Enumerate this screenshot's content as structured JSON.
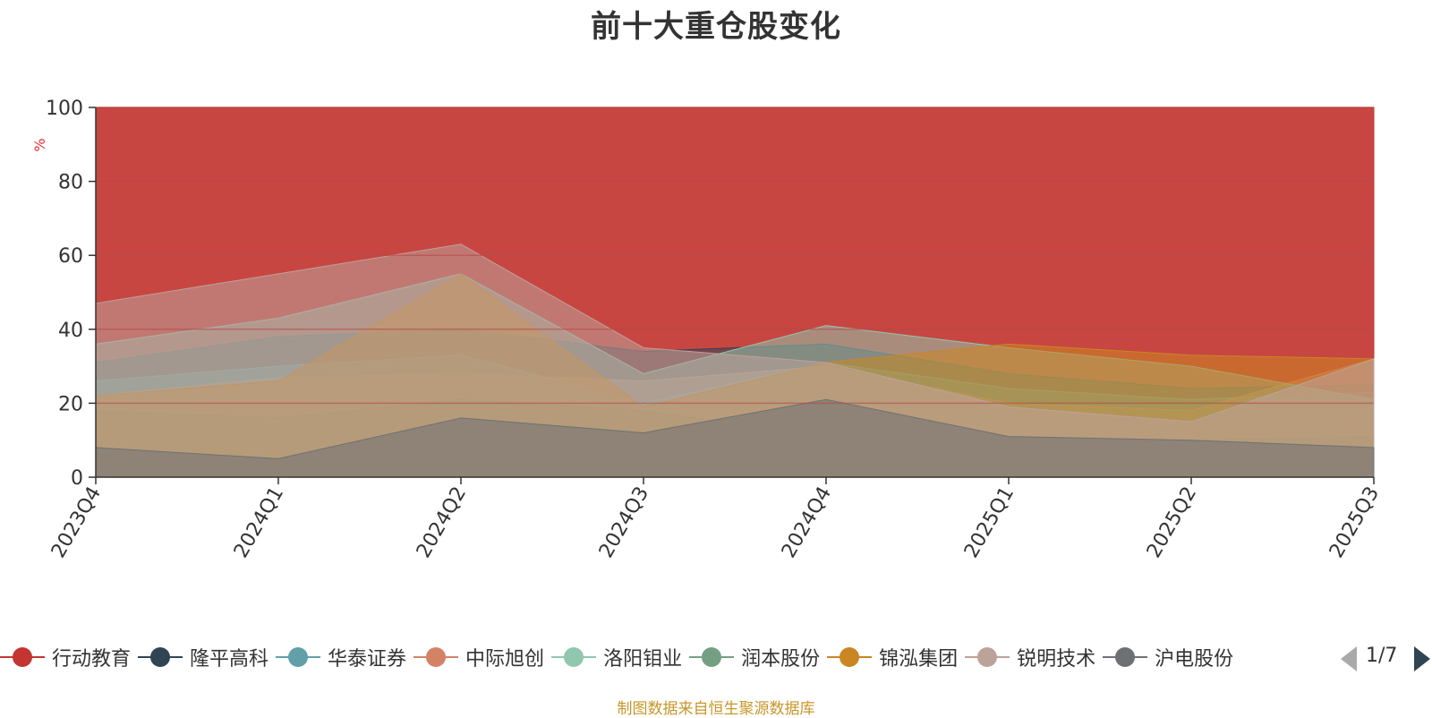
{
  "chart_data": {
    "type": "area",
    "title": "前十大重仓股变化",
    "ylabel": "%",
    "xlabel": "",
    "ylim": [
      0,
      100
    ],
    "yticks": [
      0,
      20,
      40,
      60,
      80,
      100
    ],
    "grid": true,
    "categories": [
      "2023Q4",
      "2024Q1",
      "2024Q2",
      "2024Q3",
      "2024Q4",
      "2025Q1",
      "2025Q2",
      "2025Q3"
    ],
    "series": [
      {
        "name": "行动教育",
        "color": "#c23531",
        "values": [
          100,
          100,
          100,
          100,
          100,
          100,
          100,
          100
        ]
      },
      {
        "name": "隆平高科",
        "color": "#2f4554",
        "values": [
          31,
          38,
          40,
          34,
          36,
          28,
          24,
          25
        ]
      },
      {
        "name": "华泰证券",
        "color": "#61a0a8",
        "values": [
          26,
          30,
          33,
          20,
          31,
          24,
          21,
          23
        ]
      },
      {
        "name": "中际旭创",
        "color": "#d48265",
        "values": [
          22,
          27,
          28,
          26,
          30,
          20,
          18,
          32
        ]
      },
      {
        "name": "洛阳钼业",
        "color": "#91c7ae",
        "values": [
          36,
          43,
          55,
          28,
          41,
          35,
          30,
          21
        ]
      },
      {
        "name": "润本股份",
        "color": "#749f83",
        "values": [
          18,
          16,
          21,
          18,
          11,
          8,
          10,
          11
        ]
      },
      {
        "name": "锦泓集团",
        "color": "#ca8622",
        "values": [
          22,
          26,
          55,
          19,
          31,
          36,
          33,
          32
        ]
      },
      {
        "name": "锐明技术",
        "color": "#bda29a",
        "values": [
          47,
          55,
          63,
          35,
          31,
          19,
          15,
          32
        ]
      },
      {
        "name": "沪电股份",
        "color": "#6e7074",
        "values": [
          8,
          5,
          16,
          12,
          21,
          11,
          10,
          8
        ]
      }
    ]
  },
  "pager": {
    "text": "1/7"
  },
  "source_note": "制图数据来自恒生聚源数据库"
}
